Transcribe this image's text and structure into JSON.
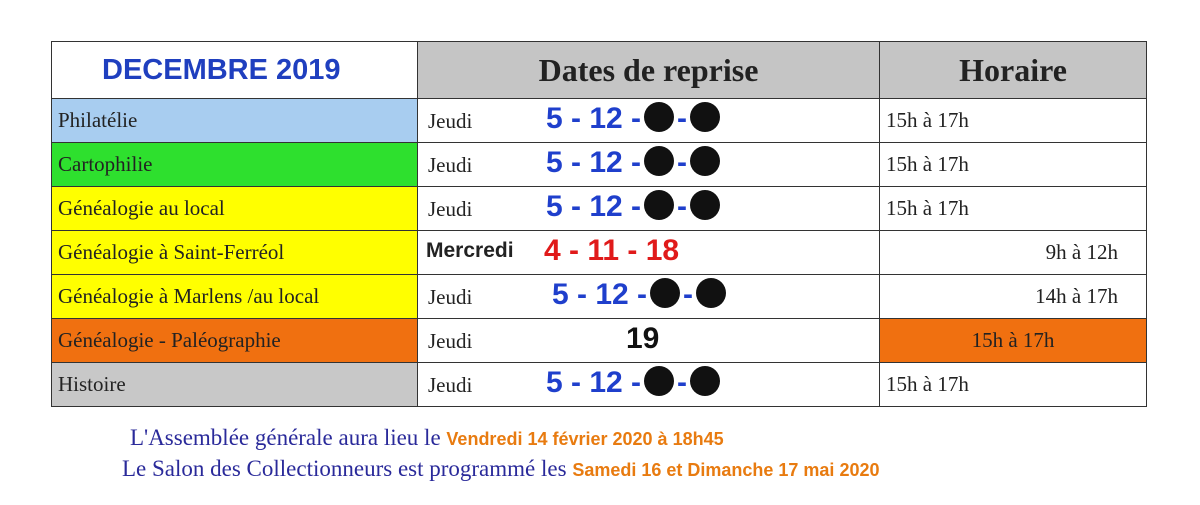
{
  "header": {
    "title": "DECEMBRE  2019",
    "col_dates": "Dates de reprise",
    "col_hours": "Horaire"
  },
  "rows": [
    {
      "activity": "Philatélie",
      "color": "#a8cdf0",
      "day": "Jeudi",
      "dates": "5 - 12 -",
      "sep": "-",
      "hours": "15h à 17h"
    },
    {
      "activity": "Cartophilie",
      "color": "#2ee02e",
      "day": "Jeudi",
      "dates": "5 - 12 -",
      "sep": "-",
      "hours": "15h à 17h"
    },
    {
      "activity": "Généalogie au local",
      "color": "#ffff00",
      "day": "Jeudi",
      "dates": "5 - 12 -",
      "sep": "-",
      "hours": "15h à 17h"
    },
    {
      "activity": "Généalogie à Saint-Ferréol",
      "color": "#ffff00",
      "day": "Mercredi",
      "dates": "4 - 11 - 18",
      "hours": "9h à 12h"
    },
    {
      "activity": "Généalogie à Marlens /au local",
      "color": "#ffff00",
      "day": "Jeudi",
      "dates": "5 - 12 -",
      "sep": "-",
      "hours": "14h à 17h"
    },
    {
      "activity": "Généalogie - Paléographie",
      "color": "#f07010",
      "day": "Jeudi",
      "dates": "19",
      "hours": "15h à 17h",
      "hours_color": "#f07010"
    },
    {
      "activity": "Histoire",
      "color": "#c8c8c8",
      "day": "Jeudi",
      "dates": "5 - 12 -",
      "sep": "-",
      "hours": "15h à 17h"
    }
  ],
  "notes": {
    "line1_text": "L'Assemblée générale aura lieu le",
    "line1_highlight": "Vendredi 14 février 2020 à 18h45",
    "line2_text": "Le Salon des Collectionneurs est programmé les",
    "line2_highlight": "Samedi 16 et Dimanche 17 mai 2020"
  },
  "colors": {
    "date_blue": "#1f3fcc",
    "date_red": "#e01a1a",
    "note_text": "#2a2a9a",
    "note_highlight": "#e87b10"
  }
}
